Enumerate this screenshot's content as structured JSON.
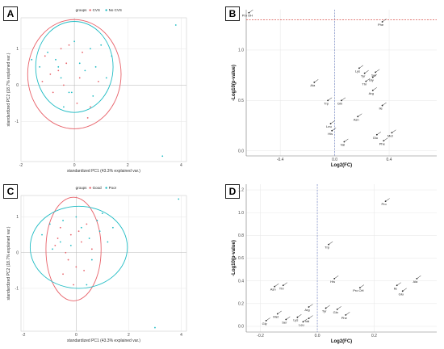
{
  "panels": {
    "a": {
      "letter": "A"
    },
    "b": {
      "letter": "B"
    },
    "c": {
      "letter": "C"
    },
    "d": {
      "letter": "D"
    }
  },
  "chart_data": [
    {
      "id": "A",
      "type": "scatter",
      "xlabel": "standardized PC1 (43.3% explained var.)",
      "ylabel": "standardized PC2 (18.7% explained var.)",
      "xlim": [
        -2.0,
        4.2
      ],
      "ylim": [
        -2.1,
        1.85
      ],
      "xticks": [
        "-2",
        "0",
        "2",
        "4"
      ],
      "xtick_values": [
        -2,
        0,
        2,
        4
      ],
      "yticks": [
        "-1",
        "0",
        "1"
      ],
      "ytick_values": [
        -1,
        0,
        1
      ],
      "legend": {
        "title": "groups",
        "entries": [
          "CVS",
          "No CVS"
        ],
        "colors": [
          "#e8626a",
          "#20bcc4"
        ],
        "placement": "top"
      },
      "ellipses": [
        {
          "group": "CVS",
          "center": [
            0.0,
            0.3
          ],
          "rx": 1.75,
          "ry": 1.5,
          "color": "#e8626a"
        },
        {
          "group": "No CVS",
          "center": [
            0.0,
            0.5
          ],
          "rx": 1.45,
          "ry": 1.25,
          "color": "#20bcc4"
        }
      ],
      "series": [
        {
          "name": "CVS",
          "color": "#e8626a",
          "points": [
            [
              -1.1,
              0.8
            ],
            [
              -0.9,
              0.3
            ],
            [
              -0.6,
              0.4
            ],
            [
              -0.4,
              0.0
            ],
            [
              -0.2,
              1.1
            ],
            [
              0.1,
              -0.5
            ],
            [
              0.3,
              0.9
            ],
            [
              0.6,
              -0.6
            ],
            [
              -0.8,
              -0.2
            ],
            [
              -0.3,
              0.6
            ],
            [
              0.2,
              0.2
            ],
            [
              -0.5,
              1.0
            ],
            [
              0.9,
              0.1
            ],
            [
              -1.2,
              0.1
            ],
            [
              0.5,
              -0.9
            ]
          ]
        },
        {
          "name": "No CVS",
          "color": "#20bcc4",
          "points": [
            [
              -1.6,
              0.7
            ],
            [
              -1.3,
              0.5
            ],
            [
              -1.0,
              0.9
            ],
            [
              -0.7,
              0.7
            ],
            [
              -0.5,
              0.2
            ],
            [
              -0.2,
              -0.2
            ],
            [
              0.0,
              1.2
            ],
            [
              0.2,
              0.6
            ],
            [
              0.4,
              0.4
            ],
            [
              0.6,
              1.0
            ],
            [
              0.8,
              0.5
            ],
            [
              1.0,
              1.1
            ],
            [
              1.2,
              0.2
            ],
            [
              1.4,
              0.8
            ],
            [
              -0.4,
              -0.6
            ],
            [
              -0.1,
              -0.2
            ],
            [
              0.7,
              -0.3
            ],
            [
              -0.6,
              0.5
            ]
          ]
        },
        {
          "name": "",
          "color": "#20bcc4",
          "points": [
            [
              3.8,
              1.65
            ],
            [
              3.3,
              -1.95
            ]
          ]
        }
      ]
    },
    {
      "id": "B",
      "type": "scatter",
      "xlabel": "Log2(FC)",
      "ylabel": "-Log10(p-value)",
      "xlim": [
        -0.65,
        0.75
      ],
      "ylim": [
        -0.05,
        1.4
      ],
      "xticks": [
        "-0.4",
        "0.0",
        "0.4"
      ],
      "xtick_values": [
        -0.4,
        0.0,
        0.4
      ],
      "yticks": [
        "0.0",
        "0.5",
        "1.0"
      ],
      "ytick_values": [
        0.0,
        0.5,
        1.0
      ],
      "threshold_y": 1.3,
      "threshold_x": 0.0,
      "points": [
        {
          "label": "Pro OH",
          "x": -0.63,
          "y": 1.37
        },
        {
          "label": "Phe",
          "x": 0.35,
          "y": 1.28
        },
        {
          "label": "Lys",
          "x": 0.18,
          "y": 0.82
        },
        {
          "label": "Tyr",
          "x": 0.22,
          "y": 0.77
        },
        {
          "label": "Ser",
          "x": 0.3,
          "y": 0.78
        },
        {
          "label": "Thr",
          "x": 0.23,
          "y": 0.69
        },
        {
          "label": "Gly",
          "x": 0.28,
          "y": 0.73
        },
        {
          "label": "Ala",
          "x": -0.15,
          "y": 0.68
        },
        {
          "label": "Arg",
          "x": 0.28,
          "y": 0.6
        },
        {
          "label": "Trp",
          "x": -0.05,
          "y": 0.5
        },
        {
          "label": "Gln",
          "x": 0.05,
          "y": 0.5
        },
        {
          "label": "Ile",
          "x": 0.35,
          "y": 0.45
        },
        {
          "label": "Asn",
          "x": 0.17,
          "y": 0.34
        },
        {
          "label": "Leu",
          "x": -0.03,
          "y": 0.27
        },
        {
          "label": "Met",
          "x": 0.42,
          "y": 0.18
        },
        {
          "label": "Glu",
          "x": 0.31,
          "y": 0.16
        },
        {
          "label": "His",
          "x": -0.02,
          "y": 0.2
        },
        {
          "label": "Val",
          "x": 0.07,
          "y": 0.09
        },
        {
          "label": "Phe",
          "x": 0.36,
          "y": 0.1
        }
      ]
    },
    {
      "id": "C",
      "type": "scatter",
      "xlabel": "standardized PC1 (43.3% explained var.)",
      "ylabel": "standardized PC2 (18.7% explained var.)",
      "xlim": [
        -2.1,
        4.2
      ],
      "ylim": [
        -2.2,
        1.6
      ],
      "xticks": [
        "-2",
        "0",
        "2",
        "4"
      ],
      "xtick_values": [
        -2,
        0,
        2,
        4
      ],
      "yticks": [
        "-1",
        "0",
        "1"
      ],
      "ytick_values": [
        -1,
        0,
        1
      ],
      "legend": {
        "title": "groups",
        "entries": [
          "Good",
          "Poor"
        ],
        "colors": [
          "#e8626a",
          "#20bcc4"
        ],
        "placement": "top"
      },
      "ellipses": [
        {
          "group": "Good",
          "center": [
            -0.1,
            0.1
          ],
          "rx": 1.05,
          "ry": 1.45,
          "color": "#e8626a"
        },
        {
          "group": "Poor",
          "center": [
            0.1,
            0.15
          ],
          "rx": 1.85,
          "ry": 1.15,
          "color": "#20bcc4"
        }
      ],
      "series": [
        {
          "name": "Good",
          "color": "#e8626a",
          "points": [
            [
              -0.8,
              0.2
            ],
            [
              -0.6,
              0.7
            ],
            [
              -0.4,
              0.0
            ],
            [
              -0.2,
              0.5
            ],
            [
              0.0,
              -0.4
            ],
            [
              0.2,
              0.3
            ],
            [
              0.4,
              0.8
            ],
            [
              -0.5,
              -0.6
            ],
            [
              0.1,
              0.6
            ],
            [
              -0.3,
              -0.2
            ],
            [
              0.6,
              0.1
            ],
            [
              -0.7,
              0.4
            ],
            [
              0.3,
              -0.5
            ],
            [
              -0.1,
              -0.9
            ]
          ]
        },
        {
          "name": "Poor",
          "color": "#20bcc4",
          "points": [
            [
              -1.3,
              0.5
            ],
            [
              -1.0,
              0.8
            ],
            [
              -0.9,
              0.1
            ],
            [
              -0.5,
              0.9
            ],
            [
              0.0,
              1.0
            ],
            [
              0.2,
              0.7
            ],
            [
              0.5,
              0.4
            ],
            [
              0.8,
              0.9
            ],
            [
              1.0,
              1.1
            ],
            [
              1.2,
              0.3
            ],
            [
              0.6,
              -0.2
            ],
            [
              -0.2,
              0.2
            ],
            [
              0.4,
              -0.9
            ],
            [
              -0.6,
              0.3
            ],
            [
              0.9,
              0.6
            ],
            [
              1.4,
              0.7
            ]
          ]
        },
        {
          "name": "",
          "color": "#20bcc4",
          "points": [
            [
              3.9,
              1.5
            ],
            [
              3.0,
              -2.1
            ]
          ]
        }
      ]
    },
    {
      "id": "D",
      "type": "scatter",
      "xlabel": "Log2(FC)",
      "ylabel": "-Log10(p-value)",
      "xlim": [
        -0.25,
        0.42
      ],
      "ylim": [
        -0.05,
        1.25
      ],
      "xticks": [
        "-0.2",
        "0.0",
        "0.2"
      ],
      "xtick_values": [
        -0.2,
        0.0,
        0.2
      ],
      "yticks": [
        "0.0",
        "0.2",
        "0.4",
        "0.6",
        "0.8",
        "1.0",
        "1.2"
      ],
      "ytick_values": [
        0.0,
        0.2,
        0.4,
        0.6,
        0.8,
        1.0,
        1.2
      ],
      "threshold_x": 0.0,
      "points": [
        {
          "label": "Pro",
          "x": 0.24,
          "y": 1.1
        },
        {
          "label": "Trp",
          "x": 0.04,
          "y": 0.72
        },
        {
          "label": "His",
          "x": 0.06,
          "y": 0.42
        },
        {
          "label": "Asn",
          "x": -0.15,
          "y": 0.35
        },
        {
          "label": "Thr",
          "x": -0.12,
          "y": 0.36
        },
        {
          "label": "Pro OH",
          "x": 0.15,
          "y": 0.34
        },
        {
          "label": "Ile",
          "x": 0.28,
          "y": 0.36
        },
        {
          "label": "Ala",
          "x": 0.35,
          "y": 0.42
        },
        {
          "label": "Glu",
          "x": 0.3,
          "y": 0.31
        },
        {
          "label": "Arg",
          "x": -0.03,
          "y": 0.17
        },
        {
          "label": "Tyr",
          "x": 0.03,
          "y": 0.16
        },
        {
          "label": "Gln",
          "x": 0.07,
          "y": 0.15
        },
        {
          "label": "Met",
          "x": -0.14,
          "y": 0.11
        },
        {
          "label": "Lys",
          "x": -0.07,
          "y": 0.08
        },
        {
          "label": "Phe",
          "x": 0.1,
          "y": 0.1
        },
        {
          "label": "Ser",
          "x": -0.11,
          "y": 0.06
        },
        {
          "label": "Val",
          "x": -0.03,
          "y": 0.07
        },
        {
          "label": "Gly",
          "x": -0.18,
          "y": 0.05
        },
        {
          "label": "Leu",
          "x": -0.05,
          "y": 0.04
        }
      ]
    }
  ]
}
